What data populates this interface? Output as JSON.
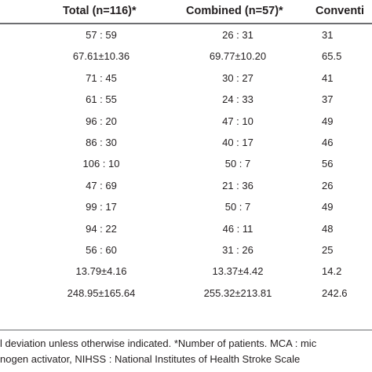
{
  "table": {
    "headers": [
      "Total (n=116)*",
      "Combined (n=57)*",
      "Conventi"
    ],
    "rows": [
      [
        "57 : 59",
        "26 : 31",
        "31"
      ],
      [
        "67.61±10.36",
        "69.77±10.20",
        "65.5"
      ],
      [
        "71 : 45",
        "30 : 27",
        "41"
      ],
      [
        "61 : 55",
        "24 : 33",
        "37"
      ],
      [
        "96 : 20",
        "47 : 10",
        "49"
      ],
      [
        "86 : 30",
        "40 : 17",
        "46"
      ],
      [
        "106 : 10",
        "50 : 7",
        "56"
      ],
      [
        "47 : 69",
        "21 : 36",
        "26"
      ],
      [
        "99 : 17",
        "50 : 7",
        "49"
      ],
      [
        "94 : 22",
        "46 : 11",
        "48"
      ],
      [
        "56 : 60",
        "31 : 26",
        "25"
      ],
      [
        "13.79±4.16",
        "13.37±4.42",
        "14.2"
      ],
      [
        "248.95±165.64",
        "255.32±213.81",
        "242.6"
      ]
    ]
  },
  "footnote": {
    "line1": "l deviation unless otherwise indicated. *Number of patients. MCA : mic",
    "line2": "nogen activator, NIHSS : National Institutes of Health Stroke Scale"
  }
}
